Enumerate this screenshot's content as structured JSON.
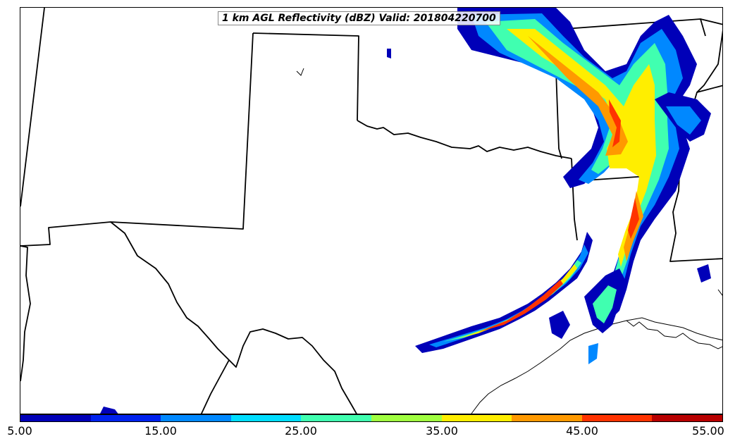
{
  "title": "1 km AGL Reflectivity (dBZ) Valid: 201804220700",
  "colorbar": {
    "ticks": [
      "5.00",
      "15.00",
      "25.00",
      "35.00",
      "45.00",
      "55.00"
    ],
    "colors": [
      "#0000b8",
      "#0022ee",
      "#0088ff",
      "#00ddff",
      "#40ffb0",
      "#a0ff40",
      "#ffee00",
      "#ff9900",
      "#ff3300",
      "#b80000"
    ]
  }
}
